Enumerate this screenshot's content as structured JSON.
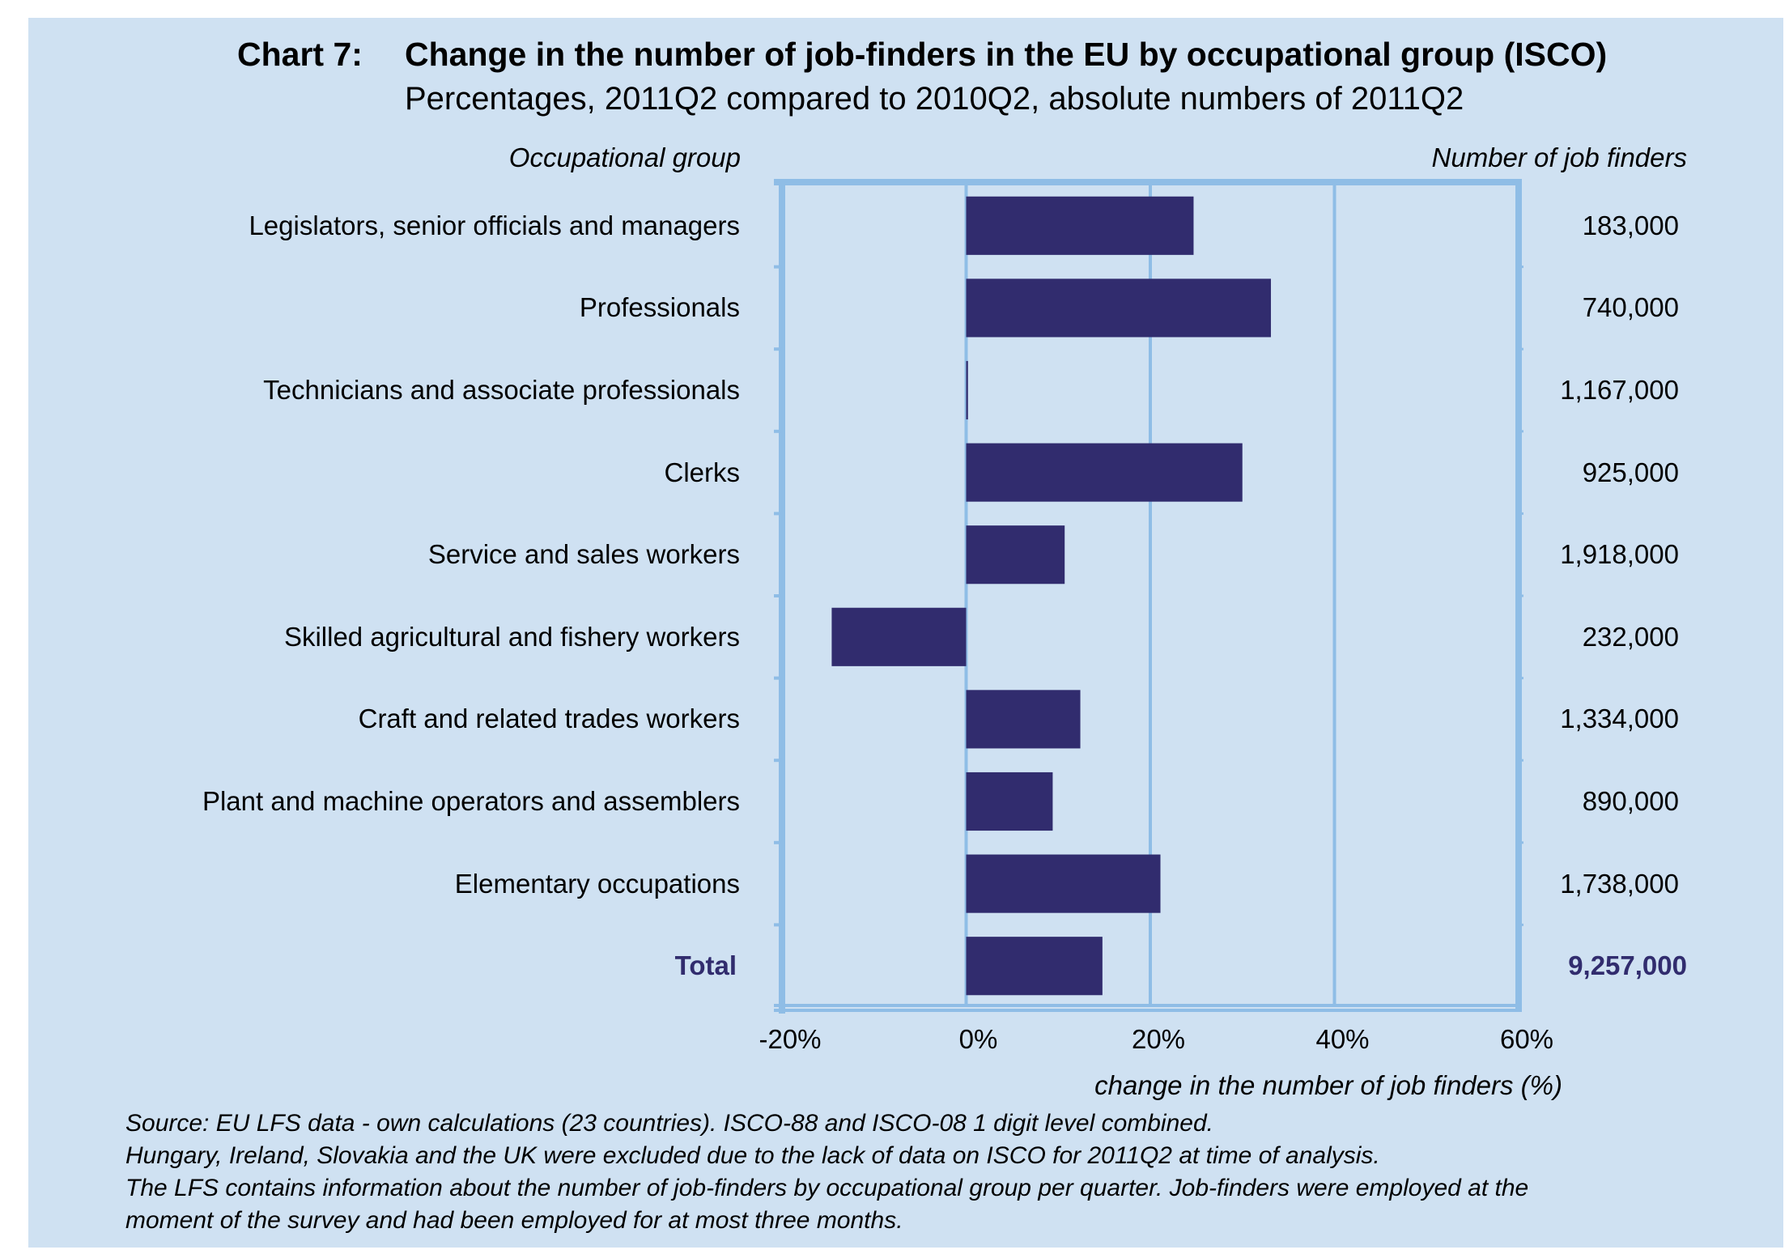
{
  "chart_data": {
    "type": "bar",
    "orientation": "horizontal",
    "chart_number": "Chart 7:",
    "title": "Change in the number of job-finders in the EU by occupational group (ISCO)",
    "subtitle": "Percentages, 2011Q2 compared to 2010Q2, absolute numbers of 2011Q2",
    "left_column_header": "Occupational group",
    "right_column_header": "Number of job finders",
    "xlabel": "change in the number of job finders (%)",
    "ylabel": "",
    "xlim": [
      -20,
      60
    ],
    "xticks": [
      -20,
      0,
      20,
      40,
      60
    ],
    "xtick_labels": [
      "-20%",
      "0%",
      "20%",
      "40%",
      "60%"
    ],
    "grid": "vertical",
    "bar_color": "#312c6e",
    "categories": [
      "Legislators, senior officials and managers",
      "Professionals",
      "Technicians and associate professionals",
      "Clerks",
      "Service and sales workers",
      "Skilled agricultural and fishery workers",
      "Craft and related trades workers",
      "Plant and machine operators and assemblers",
      "Elementary occupations",
      "Total"
    ],
    "values": [
      24.7,
      33.1,
      0.2,
      30.0,
      10.7,
      -14.6,
      12.4,
      9.4,
      21.1,
      14.8
    ],
    "job_finders": [
      "183,000",
      "740,000",
      "1,167,000",
      "925,000",
      "1,918,000",
      "232,000",
      "1,334,000",
      "890,000",
      "1,738,000",
      "9,257,000"
    ],
    "highlight_category": "Total"
  },
  "notes": [
    "Source: EU LFS data - own calculations (23 countries). ISCO-88 and ISCO-08 1 digit level combined.",
    "Hungary, Ireland, Slovakia and the UK were excluded due to the lack of data on ISCO for 2011Q2 at time of analysis.",
    "The LFS contains information about the number of job-finders by occupational group per quarter. Job-finders were employed at the",
    "moment of the survey and had been employed for at most three months."
  ],
  "colors": {
    "background": "#cfe1f2",
    "frame": "#8fbde6",
    "bar": "#312c6e",
    "total_text": "#312c6e"
  }
}
